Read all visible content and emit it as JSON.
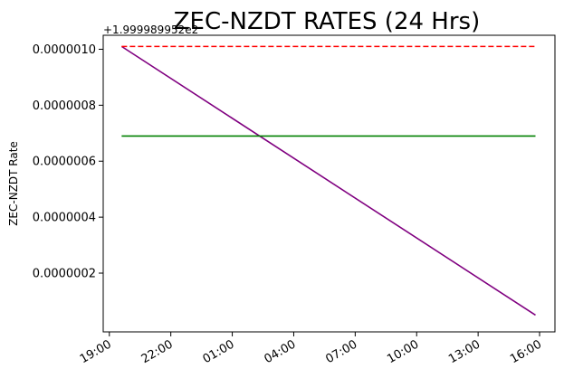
{
  "chart_data": {
    "type": "line",
    "title": "ZEC-NZDT RATES (24 Hrs)",
    "xlabel": "",
    "ylabel": "ZEC-NZDT Rate",
    "y_offset_label": "+1.999989952e2",
    "x_tick_labels": [
      "19:00",
      "22:00",
      "01:00",
      "04:00",
      "07:00",
      "10:00",
      "13:00",
      "16:00"
    ],
    "y_tick_labels": [
      "0.0000002",
      "0.0000004",
      "0.0000006",
      "0.0000008",
      "0.0000010"
    ],
    "y_tick_values": [
      2e-07,
      4e-07,
      6e-07,
      8e-07,
      1e-06
    ],
    "x_range_hours": [
      -0.3,
      21.75
    ],
    "ylim": [
      -1e-08,
      1.05e-06
    ],
    "grid": false,
    "series": [
      {
        "color": "#800080",
        "style": "solid",
        "x_hours": [
          0.6,
          20.8
        ],
        "values": [
          1.01e-06,
          5e-08
        ]
      },
      {
        "color": "#ff0000",
        "style": "dashed",
        "x_hours": [
          0.6,
          20.8
        ],
        "values": [
          1.01e-06,
          1.01e-06
        ]
      },
      {
        "color": "#008000",
        "style": "solid",
        "x_hours": [
          0.6,
          20.8
        ],
        "values": [
          6.9e-07,
          6.9e-07
        ]
      }
    ]
  }
}
